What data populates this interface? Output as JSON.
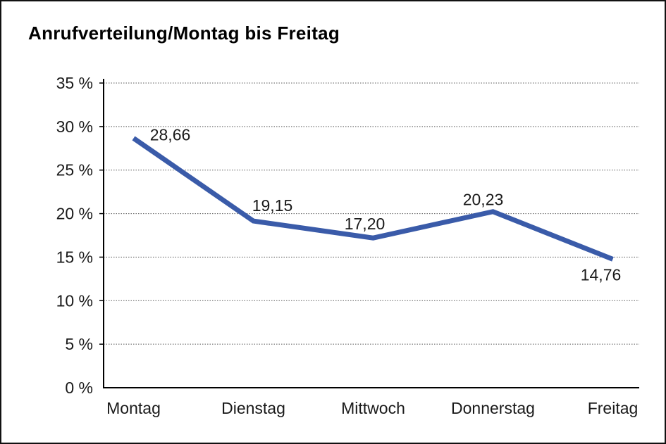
{
  "chart_data": {
    "type": "line",
    "title": "Anrufverteilung/Montag bis Freitag",
    "categories": [
      "Montag",
      "Dienstag",
      "Mittwoch",
      "Donnerstag",
      "Freitag"
    ],
    "values": [
      28.66,
      19.15,
      17.2,
      20.23,
      14.76
    ],
    "point_labels": [
      "28,66",
      "19,15",
      "17,20",
      "20,23",
      "14,76"
    ],
    "yticks": [
      0,
      5,
      10,
      15,
      20,
      25,
      30,
      35
    ],
    "ytick_labels": [
      "0 %",
      "5 %",
      "10 %",
      "15 %",
      "20 %",
      "25 %",
      "30 %",
      "35 %"
    ],
    "ylim": [
      0,
      35
    ],
    "xlabel": "",
    "ylabel": "",
    "grid": "horizontal-dotted",
    "legend": "none",
    "line_color": "#3A5BA9",
    "grid_color": "#5a5a5a",
    "axis_color": "#000000",
    "text_color": "#1a1a1a"
  }
}
